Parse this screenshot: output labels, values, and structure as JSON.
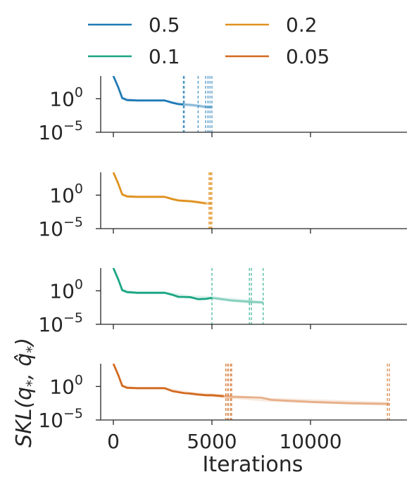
{
  "chart_data": {
    "type": "line",
    "title": "",
    "xlabel": "Iterations",
    "ylabel": "SKL(q*, q̂*)",
    "ylabel_math": {
      "main": "SKL(q",
      "sub1": "*",
      "mid": ", ",
      "hat": "^",
      "q2": "q",
      "sub2": "*",
      "end": ")"
    },
    "xlim": [
      -700,
      14700
    ],
    "xticks": [
      0,
      5000,
      10000
    ],
    "xtick_labels": [
      "0",
      "5000",
      "10000"
    ],
    "yscale": "log",
    "ylim_exp": [
      -5,
      3.4
    ],
    "yticks": [
      {
        "base": "10",
        "exp": "0",
        "value_exp": 0
      },
      {
        "base": "10",
        "exp": "−5",
        "value_exp": -5
      }
    ],
    "legend": {
      "placement": "top",
      "columns": 2
    },
    "series": [
      {
        "name": "0.5",
        "color": "#1f7ab4",
        "points": [
          [
            0,
            3.4
          ],
          [
            250,
            1.7
          ],
          [
            450,
            0.1
          ],
          [
            700,
            -0.2
          ],
          [
            1200,
            -0.25
          ],
          [
            2600,
            -0.25
          ],
          [
            3000,
            -0.6
          ],
          [
            3300,
            -0.8
          ],
          [
            3550,
            -0.85
          ],
          [
            3900,
            -0.9
          ],
          [
            4300,
            -1.05
          ],
          [
            4700,
            -1.25
          ],
          [
            5000,
            -1.25
          ]
        ],
        "ci_band": [
          [
            0,
            3.4,
            3.4
          ],
          [
            450,
            -0.1,
            0.3
          ],
          [
            1200,
            -0.4,
            -0.1
          ],
          [
            2600,
            -0.4,
            -0.1
          ],
          [
            3550,
            -1.1,
            -0.6
          ],
          [
            4300,
            -1.3,
            -0.8
          ],
          [
            5000,
            -1.5,
            -1.0
          ]
        ],
        "faded_from": 3550,
        "stop_lines": [
          3550,
          3600,
          4300,
          4680,
          4800,
          4900,
          5000
        ]
      },
      {
        "name": "0.2",
        "color": "#df921f",
        "points": [
          [
            0,
            3.4
          ],
          [
            250,
            1.7
          ],
          [
            450,
            0.1
          ],
          [
            700,
            -0.2
          ],
          [
            1200,
            -0.25
          ],
          [
            2600,
            -0.25
          ],
          [
            3000,
            -0.6
          ],
          [
            3300,
            -0.8
          ],
          [
            3900,
            -0.9
          ],
          [
            4300,
            -1.05
          ],
          [
            4700,
            -1.25
          ],
          [
            5000,
            -1.25
          ]
        ],
        "ci_band": [
          [
            0,
            3.4,
            3.4
          ],
          [
            450,
            -0.1,
            0.3
          ],
          [
            1200,
            -0.4,
            -0.1
          ],
          [
            2600,
            -0.4,
            -0.1
          ],
          [
            3550,
            -1.1,
            -0.6
          ],
          [
            4300,
            -1.3,
            -0.8
          ],
          [
            5000,
            -1.5,
            -1.0
          ]
        ],
        "faded_from": 4850,
        "stop_lines": [
          4850,
          4900,
          4950,
          5000
        ]
      },
      {
        "name": "0.1",
        "color": "#1aa583",
        "points": [
          [
            0,
            3.4
          ],
          [
            250,
            1.7
          ],
          [
            450,
            0.1
          ],
          [
            700,
            -0.2
          ],
          [
            1200,
            -0.3
          ],
          [
            2600,
            -0.3
          ],
          [
            3000,
            -0.6
          ],
          [
            3300,
            -0.9
          ],
          [
            3900,
            -0.95
          ],
          [
            4300,
            -1.25
          ],
          [
            4700,
            -1.2
          ],
          [
            5000,
            -1.05
          ],
          [
            5500,
            -1.25
          ],
          [
            6000,
            -1.45
          ],
          [
            6800,
            -1.6
          ],
          [
            7600,
            -1.75
          ]
        ],
        "ci_band": [
          [
            0,
            3.4,
            3.4
          ],
          [
            450,
            -0.1,
            0.3
          ],
          [
            1200,
            -0.5,
            -0.1
          ],
          [
            2600,
            -0.5,
            -0.1
          ],
          [
            3900,
            -1.2,
            -0.7
          ],
          [
            5000,
            -1.3,
            -0.8
          ],
          [
            6800,
            -1.9,
            -1.3
          ],
          [
            7600,
            -2.0,
            -1.5
          ]
        ],
        "faded_from": 5000,
        "stop_lines": [
          5000,
          6900,
          7000,
          7600
        ]
      },
      {
        "name": "0.05",
        "color": "#d2691f",
        "points": [
          [
            0,
            3.4
          ],
          [
            250,
            1.7
          ],
          [
            450,
            0.1
          ],
          [
            700,
            -0.2
          ],
          [
            1200,
            -0.25
          ],
          [
            2600,
            -0.25
          ],
          [
            3000,
            -0.7
          ],
          [
            3600,
            -1.0
          ],
          [
            3900,
            -1.05
          ],
          [
            4300,
            -1.2
          ],
          [
            4700,
            -1.3
          ],
          [
            5000,
            -1.3
          ],
          [
            5600,
            -1.45
          ],
          [
            6000,
            -1.55
          ],
          [
            7500,
            -1.65
          ],
          [
            8000,
            -2.0
          ],
          [
            10000,
            -2.3
          ],
          [
            12000,
            -2.5
          ],
          [
            14000,
            -2.6
          ]
        ],
        "ci_band": [
          [
            0,
            3.4,
            3.4
          ],
          [
            450,
            -0.1,
            0.3
          ],
          [
            1200,
            -0.4,
            -0.1
          ],
          [
            2600,
            -0.4,
            -0.1
          ],
          [
            3900,
            -1.3,
            -0.8
          ],
          [
            5600,
            -1.75,
            -1.15
          ],
          [
            8000,
            -2.3,
            -1.7
          ],
          [
            14000,
            -2.9,
            -2.3
          ]
        ],
        "faded_from": 5700,
        "stop_lines": [
          5700,
          5780,
          5850,
          5950,
          6000,
          13900,
          14000
        ]
      }
    ]
  }
}
